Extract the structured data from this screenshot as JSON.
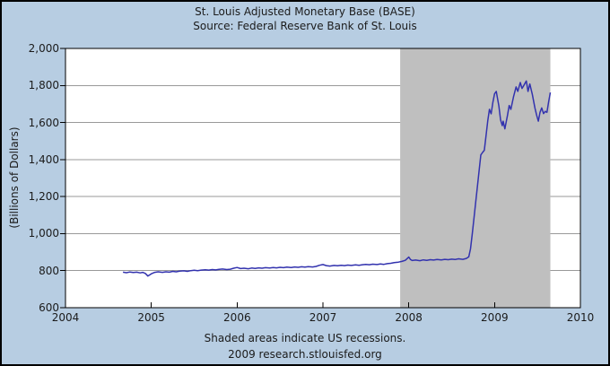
{
  "header": {
    "title": "St. Louis Adjusted Monetary Base (BASE)",
    "subtitle": "Source: Federal Reserve Bank of St. Louis"
  },
  "footer": {
    "note": "Shaded areas indicate US recessions.",
    "attribution": "2009 research.stlouisfed.org"
  },
  "colors": {
    "background": "#b7cde2",
    "plot_background": "#ffffff",
    "recession_band": "#bfbfbf",
    "gridline": "#999999",
    "axis": "#000000",
    "series_line": "#3232ae",
    "text": "#1b1b1b"
  },
  "chart_data": {
    "type": "line",
    "title": "St. Louis Adjusted Monetary Base (BASE)",
    "subtitle": "Source: Federal Reserve Bank of St. Louis",
    "xlabel": "",
    "ylabel": "(Billions of Dollars)",
    "x_range": [
      2004,
      2010
    ],
    "y_range": [
      600,
      2000
    ],
    "grid": "horizontal gridlines every 200, no vertical gridlines",
    "legend_position": "none",
    "x_ticks": [
      {
        "label": "2004",
        "value": 2004
      },
      {
        "label": "2005",
        "value": 2005
      },
      {
        "label": "2006",
        "value": 2006
      },
      {
        "label": "2007",
        "value": 2007
      },
      {
        "label": "2008",
        "value": 2008
      },
      {
        "label": "2009",
        "value": 2009
      },
      {
        "label": "2010",
        "value": 2010
      }
    ],
    "y_ticks": [
      {
        "label": "2,000",
        "value": 2000
      },
      {
        "label": "1,800",
        "value": 1800
      },
      {
        "label": "1,600",
        "value": 1600
      },
      {
        "label": "1,400",
        "value": 1400
      },
      {
        "label": "1,200",
        "value": 1200
      },
      {
        "label": "1,000",
        "value": 1000
      },
      {
        "label": "800",
        "value": 800
      },
      {
        "label": "600",
        "value": 600
      }
    ],
    "gridline_values": [
      800,
      1000,
      1200,
      1400,
      1600,
      1800
    ],
    "recession_bands": [
      {
        "start": 2007.9,
        "end": 2009.65,
        "note": "US recession (shaded area)"
      }
    ],
    "series": [
      {
        "name": "St. Louis Adjusted Monetary Base",
        "unit": "Billions of Dollars",
        "points": [
          [
            2004.67,
            792
          ],
          [
            2004.71,
            789
          ],
          [
            2004.75,
            793
          ],
          [
            2004.79,
            790
          ],
          [
            2004.83,
            792
          ],
          [
            2004.87,
            788
          ],
          [
            2004.9,
            791
          ],
          [
            2004.93,
            785
          ],
          [
            2004.96,
            771
          ],
          [
            2005.0,
            783
          ],
          [
            2005.04,
            791
          ],
          [
            2005.08,
            794
          ],
          [
            2005.13,
            791
          ],
          [
            2005.17,
            794
          ],
          [
            2005.21,
            792
          ],
          [
            2005.25,
            796
          ],
          [
            2005.29,
            794
          ],
          [
            2005.33,
            797
          ],
          [
            2005.38,
            799
          ],
          [
            2005.42,
            796
          ],
          [
            2005.46,
            800
          ],
          [
            2005.5,
            802
          ],
          [
            2005.54,
            800
          ],
          [
            2005.58,
            803
          ],
          [
            2005.63,
            805
          ],
          [
            2005.67,
            803
          ],
          [
            2005.71,
            806
          ],
          [
            2005.75,
            804
          ],
          [
            2005.79,
            807
          ],
          [
            2005.83,
            809
          ],
          [
            2005.88,
            806
          ],
          [
            2005.92,
            808
          ],
          [
            2005.96,
            813
          ],
          [
            2006.0,
            817
          ],
          [
            2006.04,
            811
          ],
          [
            2006.08,
            813
          ],
          [
            2006.13,
            810
          ],
          [
            2006.17,
            814
          ],
          [
            2006.21,
            812
          ],
          [
            2006.25,
            815
          ],
          [
            2006.29,
            813
          ],
          [
            2006.33,
            816
          ],
          [
            2006.38,
            814
          ],
          [
            2006.42,
            817
          ],
          [
            2006.46,
            815
          ],
          [
            2006.5,
            818
          ],
          [
            2006.54,
            816
          ],
          [
            2006.58,
            819
          ],
          [
            2006.63,
            817
          ],
          [
            2006.67,
            820
          ],
          [
            2006.71,
            818
          ],
          [
            2006.75,
            821
          ],
          [
            2006.79,
            819
          ],
          [
            2006.83,
            822
          ],
          [
            2006.88,
            820
          ],
          [
            2006.92,
            823
          ],
          [
            2006.96,
            829
          ],
          [
            2007.0,
            833
          ],
          [
            2007.04,
            827
          ],
          [
            2007.08,
            825
          ],
          [
            2007.13,
            828
          ],
          [
            2007.17,
            826
          ],
          [
            2007.21,
            829
          ],
          [
            2007.25,
            827
          ],
          [
            2007.29,
            830
          ],
          [
            2007.33,
            828
          ],
          [
            2007.38,
            831
          ],
          [
            2007.42,
            829
          ],
          [
            2007.46,
            832
          ],
          [
            2007.5,
            834
          ],
          [
            2007.54,
            832
          ],
          [
            2007.58,
            835
          ],
          [
            2007.63,
            833
          ],
          [
            2007.67,
            836
          ],
          [
            2007.71,
            834
          ],
          [
            2007.75,
            838
          ],
          [
            2007.79,
            840
          ],
          [
            2007.83,
            843
          ],
          [
            2007.88,
            846
          ],
          [
            2007.92,
            850
          ],
          [
            2007.96,
            856
          ],
          [
            2008.0,
            873
          ],
          [
            2008.02,
            860
          ],
          [
            2008.04,
            855
          ],
          [
            2008.08,
            857
          ],
          [
            2008.13,
            854
          ],
          [
            2008.17,
            858
          ],
          [
            2008.21,
            856
          ],
          [
            2008.25,
            859
          ],
          [
            2008.29,
            857
          ],
          [
            2008.33,
            860
          ],
          [
            2008.38,
            858
          ],
          [
            2008.42,
            861
          ],
          [
            2008.46,
            859
          ],
          [
            2008.5,
            862
          ],
          [
            2008.54,
            860
          ],
          [
            2008.58,
            864
          ],
          [
            2008.63,
            861
          ],
          [
            2008.67,
            866
          ],
          [
            2008.7,
            875
          ],
          [
            2008.72,
            918
          ],
          [
            2008.74,
            1000
          ],
          [
            2008.76,
            1085
          ],
          [
            2008.78,
            1170
          ],
          [
            2008.8,
            1255
          ],
          [
            2008.82,
            1340
          ],
          [
            2008.84,
            1425
          ],
          [
            2008.86,
            1438
          ],
          [
            2008.88,
            1450
          ],
          [
            2008.9,
            1528
          ],
          [
            2008.92,
            1608
          ],
          [
            2008.94,
            1671
          ],
          [
            2008.96,
            1647
          ],
          [
            2008.98,
            1708
          ],
          [
            2009.0,
            1755
          ],
          [
            2009.02,
            1768
          ],
          [
            2009.05,
            1690
          ],
          [
            2009.07,
            1615
          ],
          [
            2009.09,
            1583
          ],
          [
            2009.1,
            1607
          ],
          [
            2009.12,
            1566
          ],
          [
            2009.15,
            1638
          ],
          [
            2009.17,
            1692
          ],
          [
            2009.19,
            1671
          ],
          [
            2009.22,
            1738
          ],
          [
            2009.25,
            1792
          ],
          [
            2009.27,
            1768
          ],
          [
            2009.3,
            1816
          ],
          [
            2009.32,
            1784
          ],
          [
            2009.34,
            1800
          ],
          [
            2009.37,
            1824
          ],
          [
            2009.39,
            1768
          ],
          [
            2009.41,
            1808
          ],
          [
            2009.44,
            1752
          ],
          [
            2009.47,
            1679
          ],
          [
            2009.49,
            1640
          ],
          [
            2009.51,
            1607
          ],
          [
            2009.53,
            1655
          ],
          [
            2009.55,
            1679
          ],
          [
            2009.57,
            1648
          ],
          [
            2009.59,
            1660
          ],
          [
            2009.61,
            1655
          ],
          [
            2009.63,
            1712
          ],
          [
            2009.65,
            1762
          ]
        ]
      }
    ]
  }
}
